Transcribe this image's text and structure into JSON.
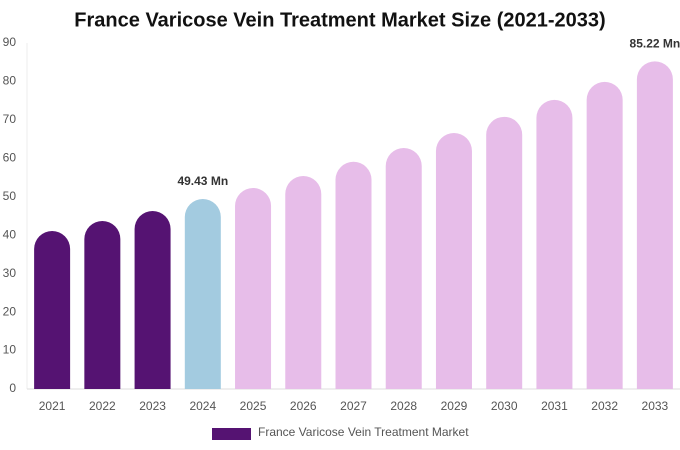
{
  "chart_data": {
    "type": "bar",
    "title": "France Varicose Vein Treatment Market Size (2021-2033)",
    "categories": [
      "2021",
      "2022",
      "2023",
      "2024",
      "2025",
      "2026",
      "2027",
      "2028",
      "2029",
      "2030",
      "2031",
      "2032",
      "2033"
    ],
    "series": [
      {
        "name": "France Varicose Vein Treatment Market",
        "color": "#551372",
        "colors": [
          "#551372",
          "#551372",
          "#551372",
          "#a3cbe0",
          "#e7bde9",
          "#e7bde9",
          "#e7bde9",
          "#e7bde9",
          "#e7bde9",
          "#e7bde9",
          "#e7bde9",
          "#e7bde9",
          "#e7bde9"
        ],
        "values": [
          41.1,
          43.7,
          46.3,
          49.43,
          52.3,
          55.4,
          59.1,
          62.7,
          66.6,
          70.8,
          75.2,
          79.9,
          85.22
        ],
        "value_labels": [
          null,
          null,
          null,
          "49.43 Mn",
          null,
          null,
          null,
          null,
          null,
          null,
          null,
          null,
          "85.22 Mn"
        ]
      }
    ],
    "ylim": [
      0,
      90
    ],
    "yticks": [
      0,
      10,
      20,
      30,
      40,
      50,
      60,
      70,
      80,
      90
    ]
  }
}
